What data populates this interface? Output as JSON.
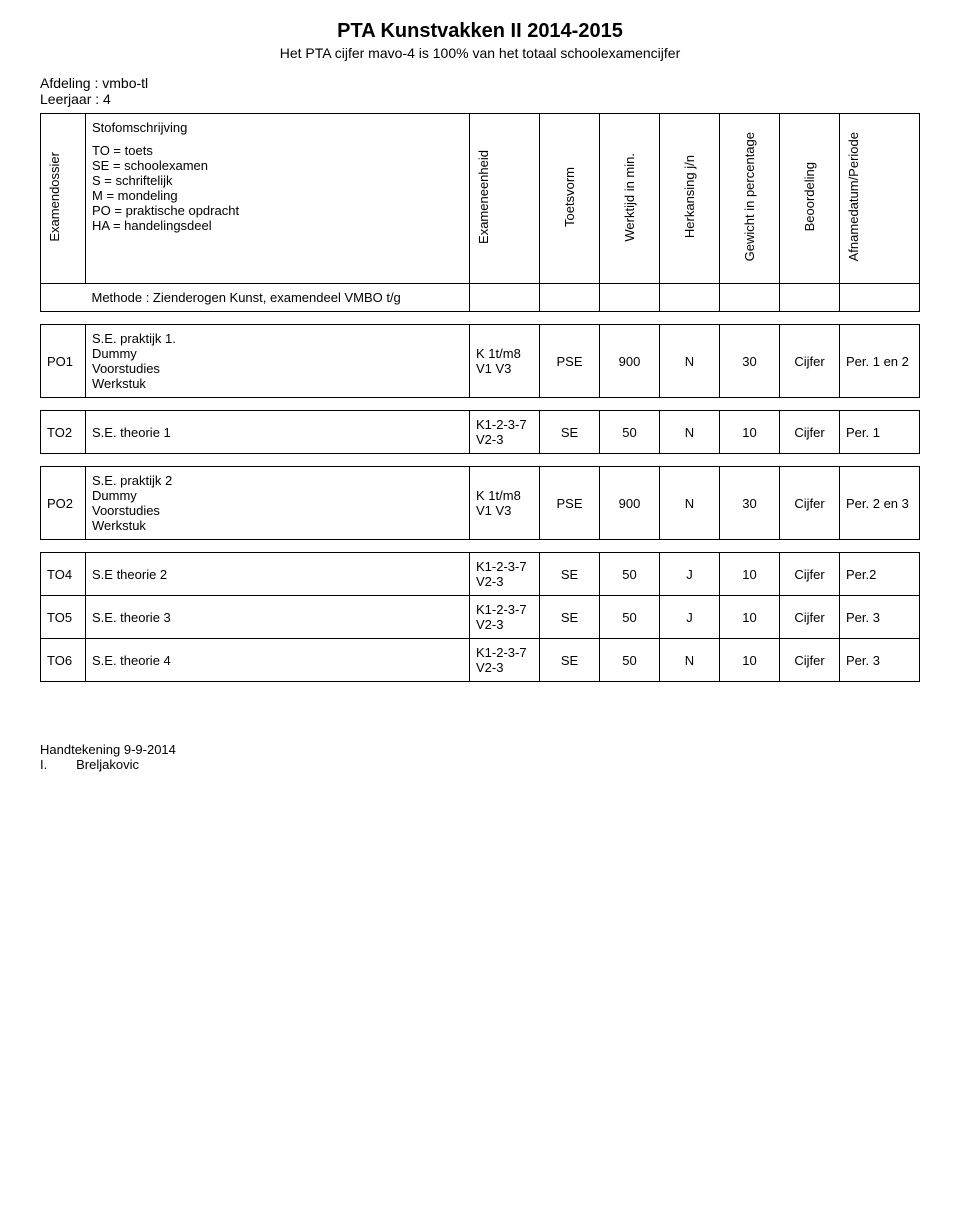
{
  "title": "PTA Kunstvakken II  2014-2015",
  "subtitle": "Het PTA cijfer mavo-4 is 100% van het totaal schoolexamencijfer",
  "meta": {
    "afdeling_label": "Afdeling : vmbo-tl",
    "leerjaar_label": "Leerjaar : 4"
  },
  "headers": {
    "examendossier": "Examendossier",
    "stof_title": "Stofomschrijving",
    "legend": [
      "TO = toets",
      "SE = schoolexamen",
      "S = schriftelijk",
      "M = mondeling",
      "PO = praktische opdracht",
      "HA = handelingsdeel"
    ],
    "exameneenheid": "Exameneenheid",
    "toetsvorm": "Toetsvorm",
    "werktijd": "Werktijd in min.",
    "herkansing": "Herkansing j/n",
    "gewicht": "Gewicht in percentage",
    "beoordeling": "Beoordeling",
    "afnamedatum": "Afnamedatum/Periode"
  },
  "method_row": "Methode : Zienderogen Kunst, examendeel VMBO t/g",
  "rows": [
    {
      "code": "PO1",
      "desc_lines": [
        "S.E. praktijk 1.",
        "Dummy",
        "Voorstudies",
        "Werkstuk"
      ],
      "eenheid": "K 1t/m8 V1 V3",
      "toetsvorm": "PSE",
      "werktijd": "900",
      "herkansing": "N",
      "gewicht": "30",
      "beoordeling": "Cijfer",
      "periode": "Per. 1 en 2"
    },
    {
      "code": "TO2",
      "desc_lines": [
        "S.E. theorie 1"
      ],
      "eenheid": "K1-2-3-7 V2-3",
      "toetsvorm": "SE",
      "werktijd": "50",
      "herkansing": "N",
      "gewicht": "10",
      "beoordeling": "Cijfer",
      "periode": "Per. 1"
    },
    {
      "code": "PO2",
      "desc_lines": [
        "S.E. praktijk 2",
        "Dummy",
        "Voorstudies",
        "Werkstuk"
      ],
      "eenheid": "K 1t/m8 V1 V3",
      "toetsvorm": "PSE",
      "werktijd": "900",
      "herkansing": "N",
      "gewicht": "30",
      "beoordeling": "Cijfer",
      "periode": "Per. 2 en 3"
    },
    {
      "code": "TO4",
      "desc_lines": [
        "S.E theorie 2"
      ],
      "eenheid": "K1-2-3-7 V2-3",
      "toetsvorm": "SE",
      "werktijd": "50",
      "herkansing": "J",
      "gewicht": "10",
      "beoordeling": "Cijfer",
      "periode": "Per.2"
    },
    {
      "code": "TO5",
      "desc_lines": [
        "S.E. theorie 3"
      ],
      "eenheid": "K1-2-3-7 V2-3",
      "toetsvorm": "SE",
      "werktijd": "50",
      "herkansing": "J",
      "gewicht": "10",
      "beoordeling": "Cijfer",
      "periode": "Per. 3"
    },
    {
      "code": "TO6",
      "desc_lines": [
        "S.E. theorie 4"
      ],
      "eenheid": "K1-2-3-7 V2-3",
      "toetsvorm": "SE",
      "werktijd": "50",
      "herkansing": "N",
      "gewicht": "10",
      "beoordeling": "Cijfer",
      "periode": "Per. 3"
    }
  ],
  "grouping": {
    "standalone_tables": [
      0,
      1,
      2
    ],
    "grouped_table": [
      3,
      4,
      5
    ]
  },
  "footer": {
    "line1": "Handtekening  9-9-2014",
    "line2": "I.        Breljakovic"
  },
  "style": {
    "title_fontsize": 20,
    "body_fontsize": 13,
    "border_color": "#000000",
    "background": "#ffffff"
  }
}
